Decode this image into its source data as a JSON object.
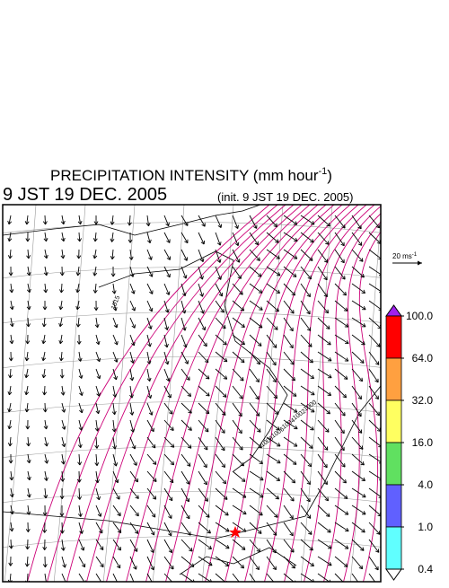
{
  "header": {
    "title": "PRECIPITATION INTENSITY (mm hour",
    "title_sup": "-1",
    "title_close": ")",
    "valid_time": "9 JST 19 DEC. 2005",
    "init_time": "(init. 9 JST 19 DEC. 2005)"
  },
  "wind_scale": {
    "label": "20 ms",
    "sup": "-1"
  },
  "map": {
    "contour_labels": [
      "1015",
      "1000",
      "1002",
      "1004",
      "1006",
      "1008"
    ],
    "contour_color": "#cc0077",
    "marker_color": "#ff0000"
  },
  "colorbar": {
    "colors": [
      "#a020f0",
      "#ff0000",
      "#ffa040",
      "#ffff60",
      "#60e060",
      "#6060ff",
      "#60ffff",
      "#ffffff"
    ],
    "ticks": [
      {
        "value": 100,
        "label": "100.0"
      },
      {
        "value": 64,
        "label": "64.0"
      },
      {
        "value": 32,
        "label": "32.0"
      },
      {
        "value": 16,
        "label": "16.0"
      },
      {
        "value": 4,
        "label": "4.0"
      },
      {
        "value": 1,
        "label": "1.0"
      },
      {
        "value": 0.4,
        "label": "0.4"
      }
    ]
  }
}
